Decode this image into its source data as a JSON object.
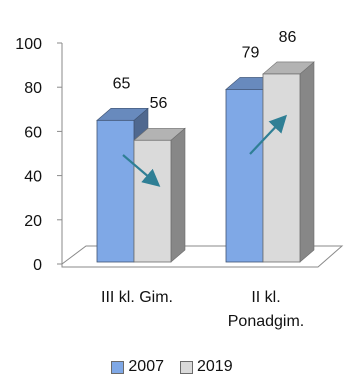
{
  "chart_data": {
    "type": "bar",
    "categories": [
      "III kl. Gim.",
      "II kl.\nPonadgim."
    ],
    "series": [
      {
        "name": "2007",
        "values": [
          65,
          79
        ],
        "color": "#7fa8e6"
      },
      {
        "name": "2019",
        "values": [
          56,
          86
        ],
        "color": "#dadada"
      }
    ],
    "ylim": [
      0,
      100
    ],
    "yticks": [
      0,
      20,
      40,
      60,
      80,
      100
    ],
    "title": "",
    "xlabel": "",
    "ylabel": "",
    "legend_position": "bottom",
    "grid": false,
    "trend_arrows": [
      "down",
      "up"
    ],
    "arrow_color": "#2f7f95",
    "style": "3d-column"
  }
}
